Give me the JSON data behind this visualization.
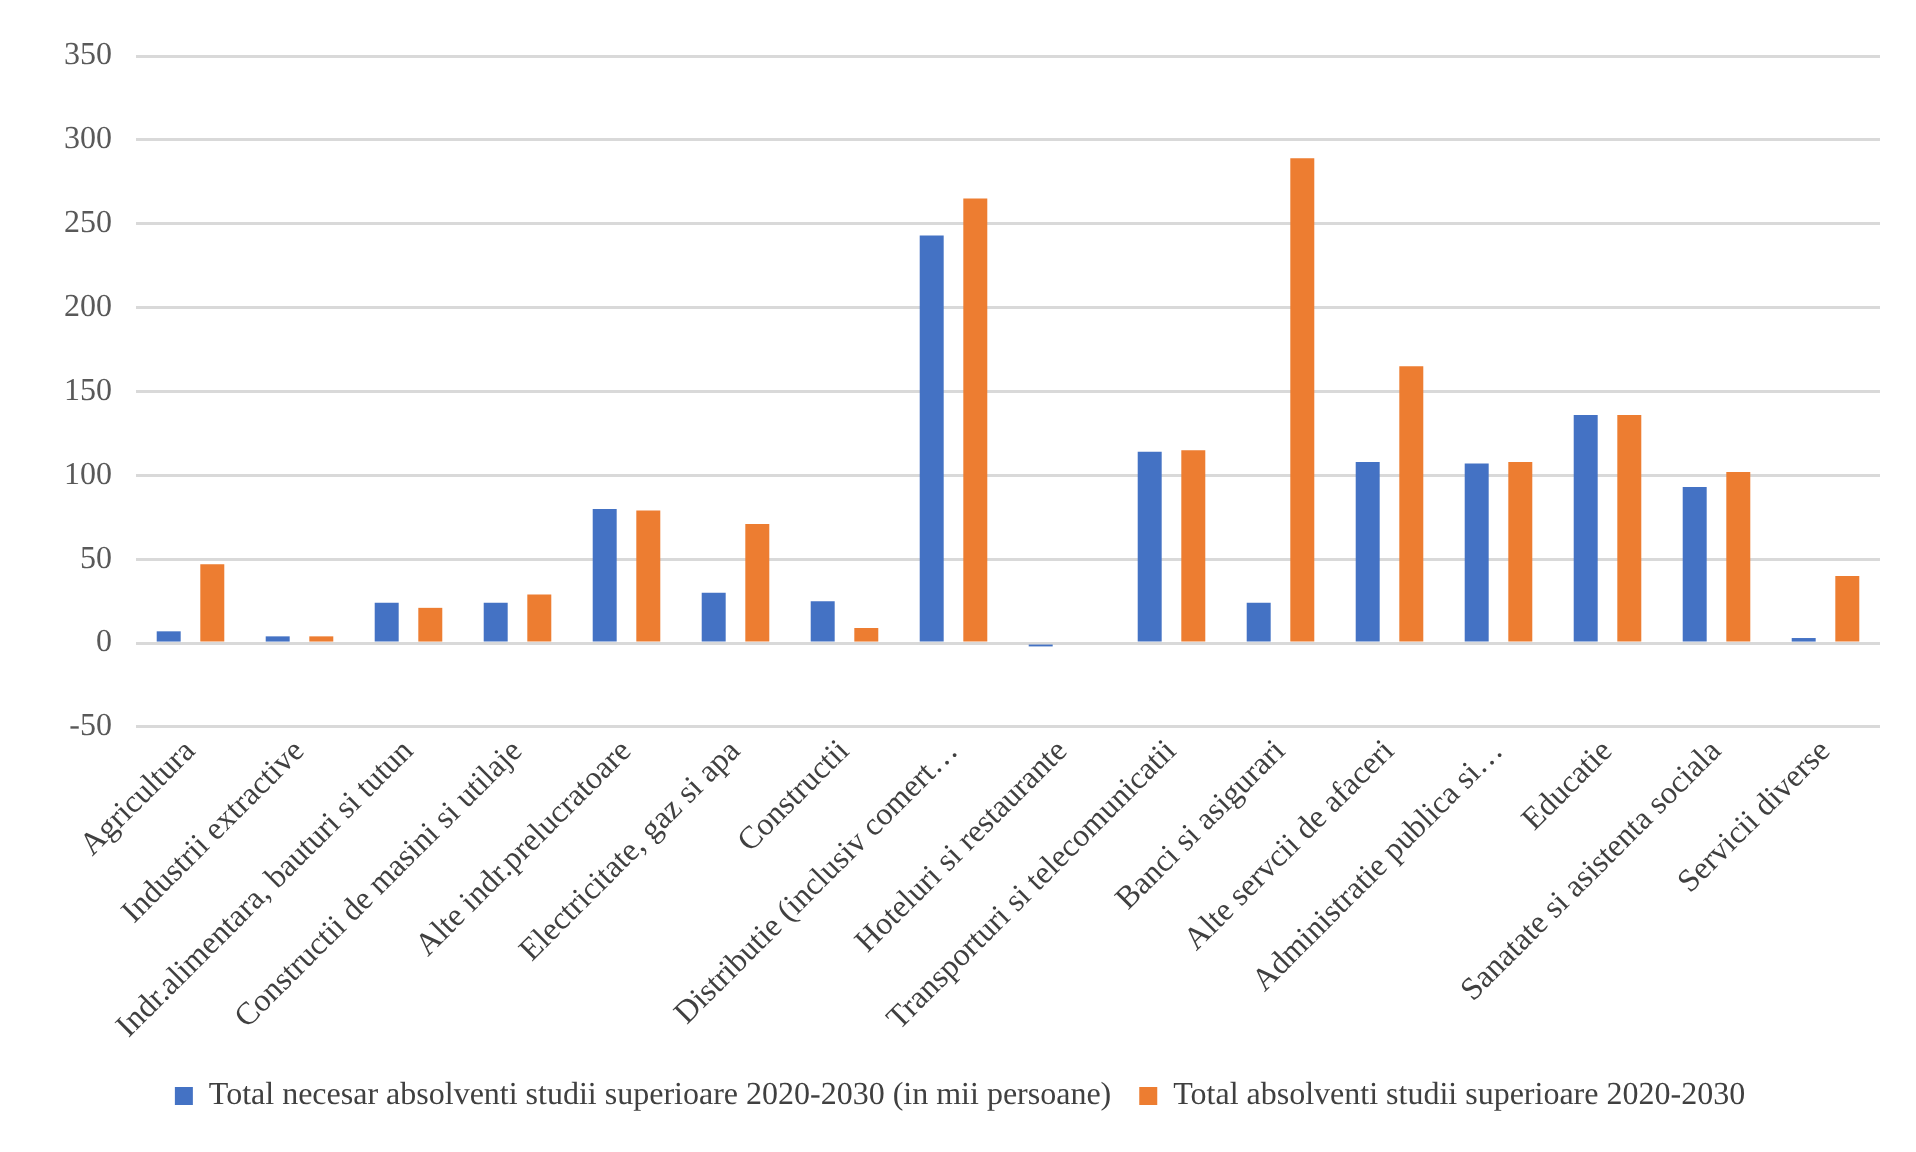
{
  "chart_data": {
    "type": "bar",
    "categories": [
      "Agricultura",
      "Industrii extractive",
      "Indr.alimentara, bauturi si tutun",
      "Constructii de masini si utilaje",
      "Alte indr.prelucratoare",
      "Electricitate, gaz si apa",
      "Constructii",
      "Distributie (inclusiv comert…",
      "Hoteluri si restaurante",
      "Transporturi si telecomunicatii",
      "Banci si asigurari",
      "Alte servcii de afaceri",
      "Administratie publica si…",
      "Educatie",
      "Sanatate si asistenta sociala",
      "Servicii diverse"
    ],
    "series": [
      {
        "name": "Total necesar absolventi studii superioare 2020-2030 (in mii persoane)",
        "color": "#4472c4",
        "values": [
          7,
          4,
          24,
          24,
          80,
          30,
          25,
          243,
          -2,
          114,
          24,
          108,
          107,
          136,
          93,
          3
        ]
      },
      {
        "name": "Total absolventi studii superioare 2020-2030",
        "color": "#ed7d31",
        "values": [
          47,
          4,
          21,
          29,
          79,
          71,
          9,
          265,
          0,
          115,
          289,
          165,
          108,
          136,
          102,
          40
        ]
      }
    ],
    "ylim": [
      -50,
      350
    ],
    "yticks": [
      -50,
      0,
      50,
      100,
      150,
      200,
      250,
      300,
      350
    ],
    "grid": "y",
    "legend": "bottom"
  }
}
